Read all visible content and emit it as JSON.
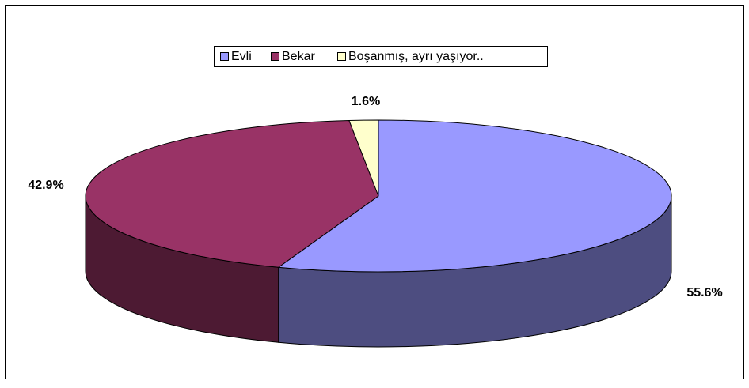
{
  "chart_data": {
    "type": "pie",
    "categories": [
      "Evli",
      "Bekar",
      "Boşanmış, ayrı yaşıyor.."
    ],
    "values": [
      55.6,
      42.9,
      1.6
    ],
    "value_labels": [
      "55.6%",
      "42.9%",
      "1.6%"
    ],
    "colors": [
      "#9999ff",
      "#993366",
      "#ffffcc"
    ],
    "legend": "top"
  }
}
